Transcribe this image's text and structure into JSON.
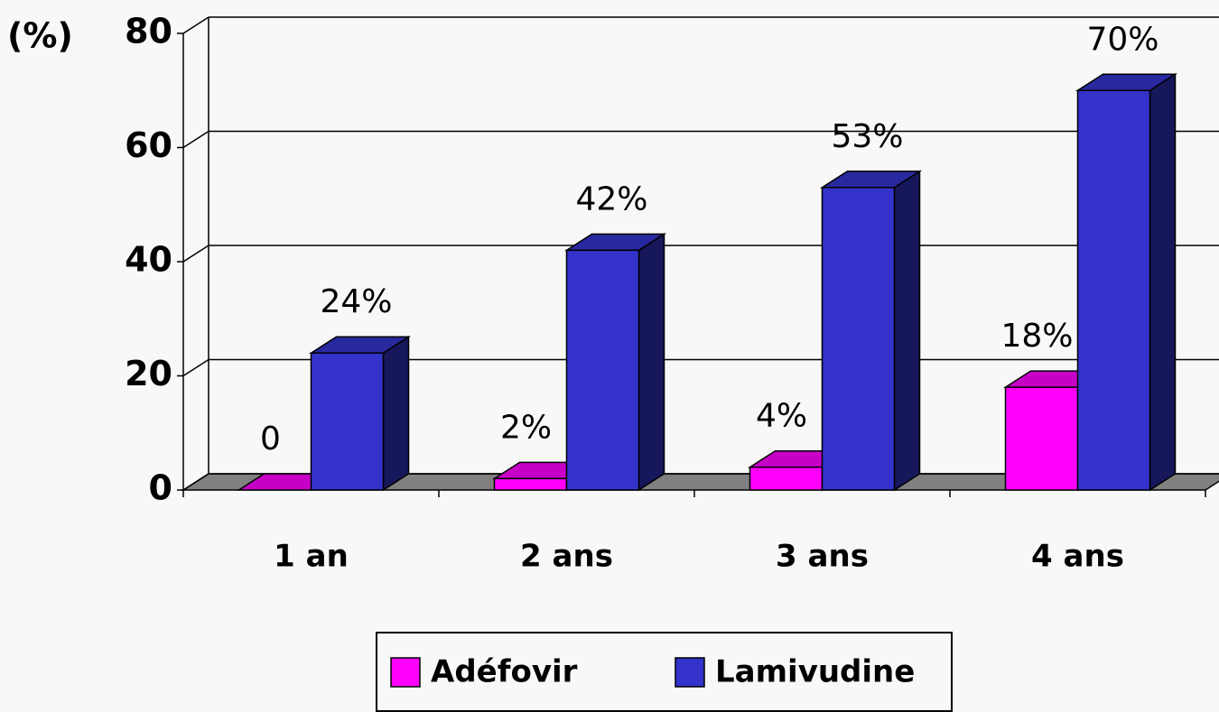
{
  "chart_data": {
    "type": "bar3d",
    "y_label": "(%)",
    "categories": [
      "1 an",
      "2 ans",
      "3 ans",
      "4 ans"
    ],
    "series": [
      {
        "name": "Adéfovir",
        "color": "#ff00ff",
        "values": [
          0,
          2,
          4,
          18
        ],
        "value_labels": [
          "0",
          "2%",
          "4%",
          "18%"
        ]
      },
      {
        "name": "Lamivudine",
        "color": "#3333cc",
        "values": [
          24,
          42,
          53,
          70
        ],
        "value_labels": [
          "24%",
          "42%",
          "53%",
          "70%"
        ]
      }
    ],
    "ylim": [
      0,
      80
    ],
    "yticks": [
      0,
      20,
      40,
      60,
      80
    ],
    "grid": true
  }
}
